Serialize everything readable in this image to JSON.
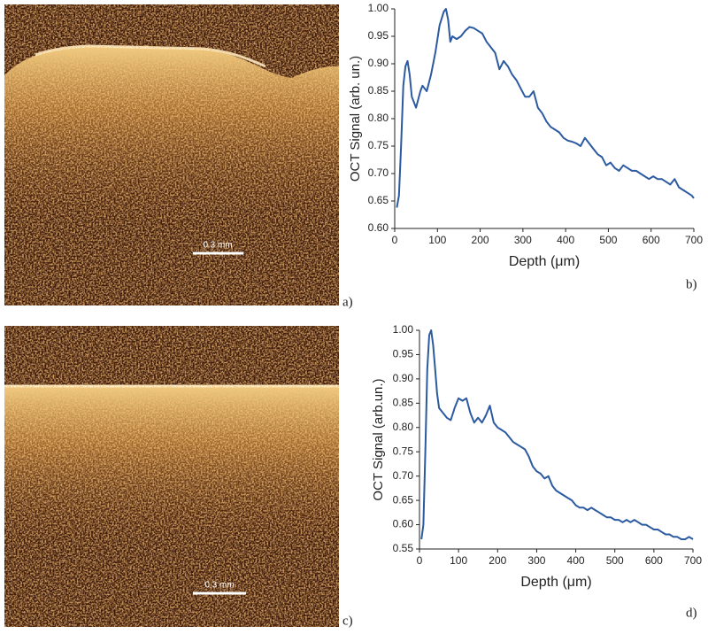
{
  "images": [
    {
      "panel_label": "a)",
      "scale_bar": "0.3 mm"
    },
    {
      "panel_label": "c)",
      "scale_bar": "0.3 mm"
    }
  ],
  "chart_data": [
    {
      "type": "line",
      "panel_label": "b)",
      "xlabel": "Depth (μm)",
      "ylabel": "OCT Signal (arb. un.)",
      "color": "#2b5aa0",
      "x": [
        5,
        10,
        15,
        20,
        25,
        30,
        35,
        40,
        50,
        60,
        65,
        75,
        85,
        95,
        105,
        115,
        120,
        125,
        130,
        135,
        145,
        155,
        165,
        175,
        185,
        195,
        205,
        215,
        225,
        235,
        245,
        255,
        265,
        275,
        285,
        295,
        305,
        315,
        325,
        335,
        345,
        355,
        365,
        375,
        385,
        395,
        405,
        415,
        425,
        435,
        445,
        455,
        465,
        475,
        485,
        495,
        505,
        515,
        525,
        535,
        545,
        555,
        565,
        575,
        585,
        595,
        605,
        615,
        625,
        635,
        645,
        655,
        665,
        675,
        685,
        695,
        700
      ],
      "values": [
        0.638,
        0.66,
        0.75,
        0.86,
        0.895,
        0.905,
        0.88,
        0.84,
        0.82,
        0.85,
        0.86,
        0.85,
        0.88,
        0.92,
        0.97,
        0.995,
        1.0,
        0.98,
        0.94,
        0.95,
        0.945,
        0.95,
        0.96,
        0.967,
        0.965,
        0.96,
        0.955,
        0.94,
        0.93,
        0.92,
        0.89,
        0.905,
        0.895,
        0.88,
        0.87,
        0.855,
        0.84,
        0.84,
        0.85,
        0.82,
        0.81,
        0.795,
        0.785,
        0.78,
        0.775,
        0.765,
        0.76,
        0.758,
        0.755,
        0.75,
        0.765,
        0.755,
        0.745,
        0.735,
        0.73,
        0.715,
        0.72,
        0.71,
        0.705,
        0.715,
        0.71,
        0.705,
        0.705,
        0.7,
        0.695,
        0.69,
        0.695,
        0.69,
        0.69,
        0.685,
        0.68,
        0.69,
        0.675,
        0.67,
        0.665,
        0.66,
        0.655
      ],
      "xlim": [
        0,
        700
      ],
      "xticks": [
        0,
        100,
        200,
        300,
        400,
        500,
        600,
        700
      ],
      "ylim": [
        0.6,
        1.0
      ],
      "yticks": [
        {
          "value": 0.6,
          "label": "0.60"
        },
        0.65,
        {
          "value": 0.7,
          "label": "0.70"
        },
        0.75,
        {
          "value": 0.8,
          "label": "0.80"
        },
        0.85,
        {
          "value": 0.9,
          "label": "0.90"
        },
        0.95,
        {
          "value": 1.0,
          "label": "1.00"
        }
      ]
    },
    {
      "type": "line",
      "panel_label": "d)",
      "xlabel": "Depth (μm)",
      "ylabel": "OCT Signal (arb.un.)",
      "color": "#2b5aa0",
      "x": [
        5,
        10,
        15,
        20,
        25,
        30,
        35,
        40,
        45,
        50,
        60,
        70,
        80,
        90,
        100,
        110,
        120,
        130,
        140,
        150,
        160,
        170,
        180,
        190,
        200,
        210,
        220,
        230,
        240,
        250,
        260,
        270,
        280,
        290,
        300,
        310,
        320,
        330,
        340,
        350,
        360,
        370,
        380,
        390,
        400,
        410,
        420,
        430,
        440,
        450,
        460,
        470,
        480,
        490,
        500,
        510,
        520,
        530,
        540,
        550,
        560,
        570,
        580,
        590,
        600,
        610,
        620,
        630,
        640,
        650,
        660,
        670,
        680,
        690,
        700
      ],
      "values": [
        0.57,
        0.6,
        0.75,
        0.92,
        0.99,
        1.0,
        0.97,
        0.92,
        0.87,
        0.84,
        0.83,
        0.82,
        0.815,
        0.84,
        0.86,
        0.855,
        0.86,
        0.83,
        0.81,
        0.82,
        0.81,
        0.825,
        0.845,
        0.81,
        0.8,
        0.795,
        0.79,
        0.78,
        0.77,
        0.765,
        0.76,
        0.755,
        0.74,
        0.72,
        0.71,
        0.705,
        0.695,
        0.7,
        0.68,
        0.67,
        0.665,
        0.66,
        0.655,
        0.65,
        0.64,
        0.635,
        0.635,
        0.63,
        0.635,
        0.63,
        0.625,
        0.62,
        0.615,
        0.615,
        0.61,
        0.61,
        0.605,
        0.61,
        0.605,
        0.61,
        0.605,
        0.6,
        0.6,
        0.595,
        0.59,
        0.59,
        0.585,
        0.58,
        0.58,
        0.575,
        0.575,
        0.57,
        0.57,
        0.575,
        0.57
      ],
      "xlim": [
        0,
        700
      ],
      "xticks": [
        0,
        100,
        200,
        300,
        400,
        500,
        600,
        700
      ],
      "ylim": [
        0.55,
        1.0
      ],
      "yticks": [
        0.55,
        {
          "value": 0.6,
          "label": "0.60"
        },
        0.65,
        {
          "value": 0.7,
          "label": "0.70"
        },
        0.75,
        {
          "value": 0.8,
          "label": "0.80"
        },
        0.85,
        {
          "value": 0.9,
          "label": "0.90"
        },
        0.95,
        {
          "value": 1.0,
          "label": "1.00"
        }
      ]
    }
  ]
}
